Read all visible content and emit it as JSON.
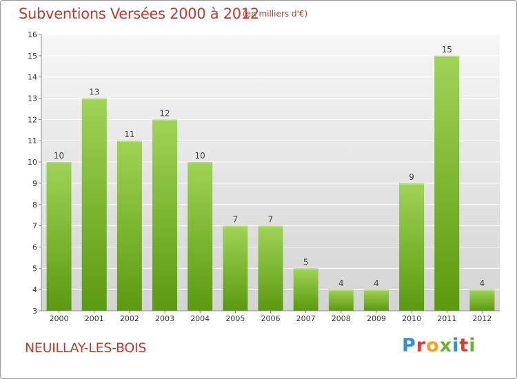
{
  "header": {
    "title": "Subventions Versées 2000 à 2012",
    "subtitle": "(en milliers d'€)"
  },
  "footer": {
    "place": "NEUILLAY-LES-BOIS",
    "logo_text": "Proxiti",
    "logo_colors": [
      "#2f8fd8",
      "#e23b2e",
      "#f2a41c",
      "#6bb52a",
      "#2f8fd8",
      "#e23b2e",
      "#6bb52a"
    ]
  },
  "colors": {
    "title": "#c23a2e",
    "bar_light": "#9bd050",
    "bar_dark": "#5e9e10",
    "plot_bg_top": "#f4f4f4",
    "plot_bg_bottom": "#d6d6d6",
    "grid": "#ffffff"
  },
  "chart_data": {
    "type": "bar",
    "categories": [
      "2000",
      "2001",
      "2002",
      "2003",
      "2004",
      "2005",
      "2006",
      "2007",
      "2008",
      "2009",
      "2010",
      "2011",
      "2012"
    ],
    "values": [
      10,
      13,
      11,
      12,
      10,
      7,
      7,
      5,
      4,
      4,
      9,
      15,
      4
    ],
    "title": "Subventions Versées 2000 à 2012",
    "subtitle": "(en milliers d'€)",
    "xlabel": "",
    "ylabel": "",
    "ylim": [
      3,
      16
    ],
    "yticks": [
      3,
      4,
      5,
      6,
      7,
      8,
      9,
      10,
      11,
      12,
      13,
      14,
      15,
      16
    ],
    "grid": true,
    "data_labels": true
  }
}
